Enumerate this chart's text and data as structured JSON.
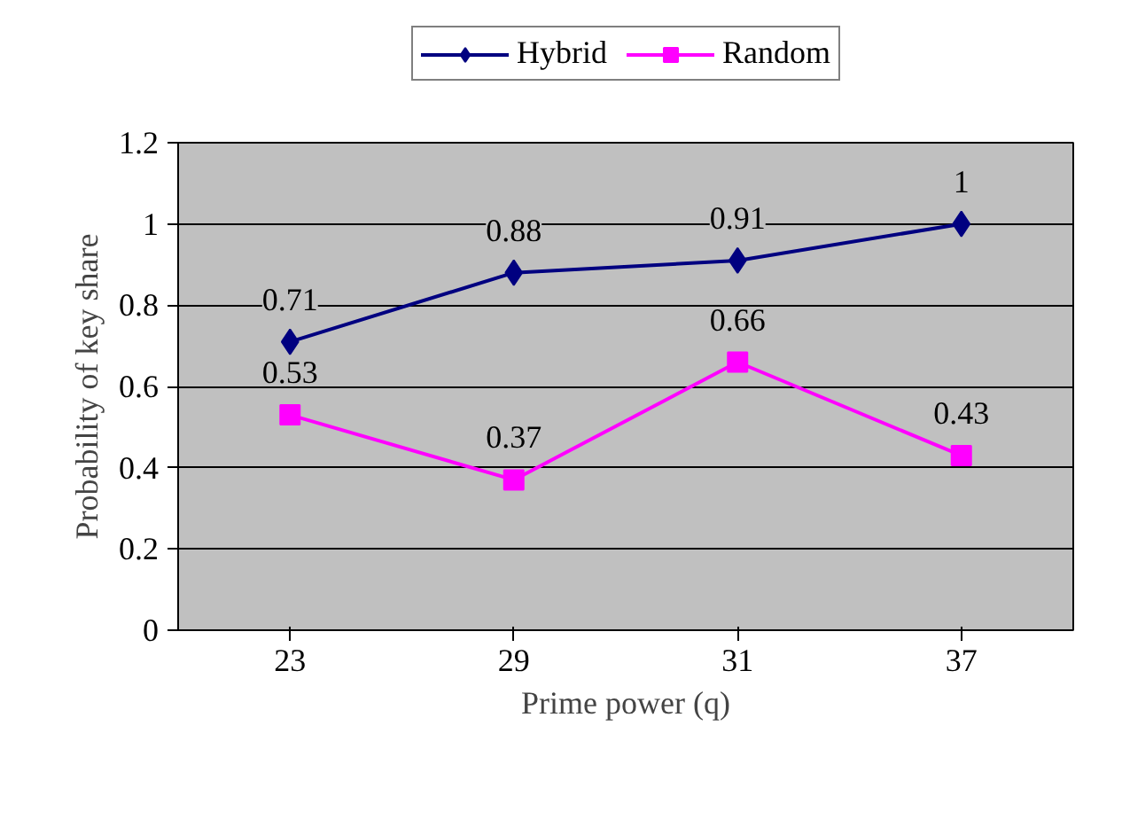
{
  "chart_data": {
    "type": "line",
    "xlabel": "Prime power (q)",
    "ylabel": "Probability of key share",
    "categories": [
      "23",
      "29",
      "31",
      "37"
    ],
    "series": [
      {
        "name": "Hybrid",
        "color": "#000080",
        "marker": "diamond",
        "values": [
          0.71,
          0.88,
          0.91,
          1
        ]
      },
      {
        "name": "Random",
        "color": "#ff00ff",
        "marker": "square",
        "values": [
          0.53,
          0.37,
          0.66,
          0.43
        ]
      }
    ],
    "ylim": [
      0,
      1.2
    ],
    "yticks": [
      0,
      0.2,
      0.4,
      0.6,
      0.8,
      1,
      1.2
    ],
    "grid": "y",
    "legend": "top",
    "data_labels": true
  }
}
